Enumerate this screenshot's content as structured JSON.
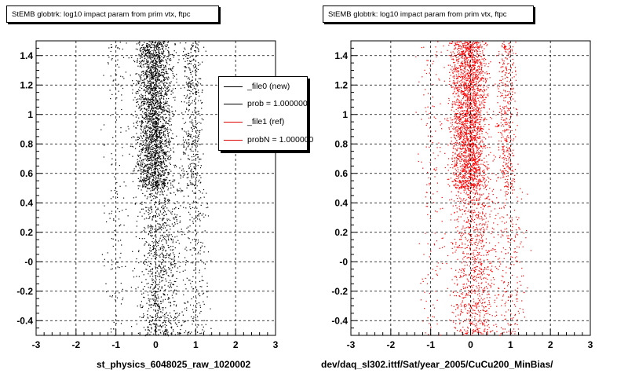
{
  "chart_data": [
    {
      "type": "scatter",
      "title": "StEMB globtrk: log10 impact param from prim vtx, ftpc",
      "xlabel": "st_physics_6048025_raw_1020002",
      "ylabel": "",
      "xlim": [
        -3,
        3
      ],
      "ylim": [
        -0.5,
        1.5
      ],
      "xticks": [
        "-3",
        "-2",
        "-1",
        "0",
        "1",
        "2",
        "3"
      ],
      "yticks": [
        "-0.4",
        "-0.2",
        "-0",
        "0.2",
        "0.4",
        "0.6",
        "0.8",
        "1",
        "1.2",
        "1.4"
      ],
      "grid": true,
      "marker_color": "#000000",
      "series": [
        {
          "name": "_file0 (new)",
          "clusters": [
            {
              "x_center": -0.05,
              "x_width": 0.45,
              "y_min": 0.5,
              "y_max": 1.5,
              "count": 2400
            },
            {
              "x_center": 0.1,
              "x_width": 0.55,
              "y_min": -0.5,
              "y_max": 0.5,
              "count": 900
            },
            {
              "x_center": 0.9,
              "x_width": 0.25,
              "y_min": 0.5,
              "y_max": 1.5,
              "count": 400
            },
            {
              "x_center": -1.0,
              "x_width": 0.35,
              "y_min": -0.5,
              "y_max": 1.5,
              "count": 150
            },
            {
              "x_center": 1.0,
              "x_width": 0.35,
              "y_min": -0.5,
              "y_max": 0.5,
              "count": 200
            }
          ]
        }
      ],
      "legend": {
        "placement": "top-right",
        "entries": [
          {
            "label": "_file0 (new)",
            "color": "#000000"
          },
          {
            "label": "prob = 1.000000",
            "color": "#000000"
          },
          {
            "label": "_file1 (ref)",
            "color": "#ff0000"
          },
          {
            "label": "probN = 1.000000",
            "color": "#ff0000"
          }
        ]
      }
    },
    {
      "type": "scatter",
      "title": "StEMB globtrk: log10 impact param from prim vtx, ftpc",
      "xlabel": "dev/daq_sl302.ittf/Sat/year_2005/CuCu200_MinBias/",
      "ylabel": "",
      "xlim": [
        -3,
        3
      ],
      "ylim": [
        -0.5,
        1.5
      ],
      "xticks": [
        "-3",
        "-2",
        "-1",
        "0",
        "1",
        "2",
        "3"
      ],
      "yticks": [
        "-0.4",
        "-0.2",
        "-0",
        "0.2",
        "0.4",
        "0.6",
        "0.8",
        "1",
        "1.2",
        "1.4"
      ],
      "grid": true,
      "marker_color": "#ff0000",
      "series": [
        {
          "name": "_file1 (ref)",
          "clusters": [
            {
              "x_center": -0.05,
              "x_width": 0.45,
              "y_min": 0.5,
              "y_max": 1.5,
              "count": 2400
            },
            {
              "x_center": 0.1,
              "x_width": 0.55,
              "y_min": -0.5,
              "y_max": 0.5,
              "count": 900
            },
            {
              "x_center": 0.9,
              "x_width": 0.25,
              "y_min": 0.5,
              "y_max": 1.5,
              "count": 400
            },
            {
              "x_center": -1.0,
              "x_width": 0.35,
              "y_min": -0.5,
              "y_max": 1.5,
              "count": 150
            },
            {
              "x_center": 1.0,
              "x_width": 0.35,
              "y_min": -0.5,
              "y_max": 0.5,
              "count": 200
            }
          ]
        }
      ]
    }
  ]
}
